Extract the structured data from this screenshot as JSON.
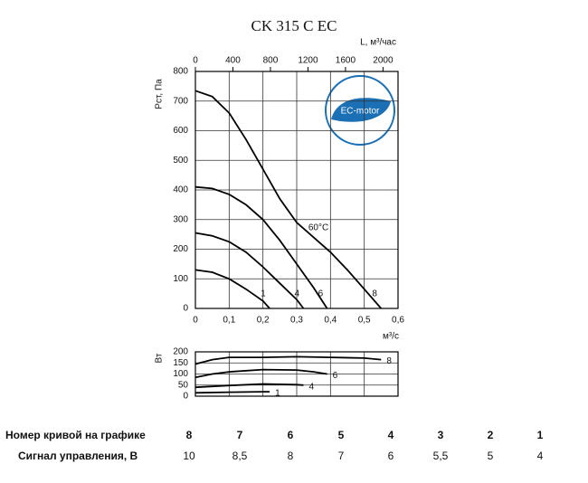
{
  "chart_data": [
    {
      "type": "line",
      "title": "CK 315 C EC",
      "x_label": "м³/с",
      "x2_label": "L, м³/час",
      "y_label": "Pст, Па",
      "annotation": "60°C",
      "badge": "EC-motor",
      "grid": true,
      "xlim": [
        0,
        0.6
      ],
      "xticks": [
        0,
        {
          "value": 0.1,
          "label": "0,1"
        },
        {
          "value": 0.2,
          "label": "0,2"
        },
        {
          "value": 0.3,
          "label": "0,3"
        },
        {
          "value": 0.4,
          "label": "0,4"
        },
        {
          "value": 0.5,
          "label": "0,5"
        },
        {
          "value": 0.6,
          "label": "0,6"
        }
      ],
      "x2lim": [
        0,
        2160
      ],
      "x2ticks": [
        0,
        400,
        800,
        1200,
        1600,
        2000
      ],
      "ylim": [
        0,
        800
      ],
      "yticks": [
        0,
        100,
        200,
        300,
        400,
        500,
        600,
        700,
        800
      ],
      "series": [
        {
          "name": "8",
          "color": "#000000",
          "x": [
            0,
            0.05,
            0.1,
            0.15,
            0.2,
            0.25,
            0.3,
            0.35,
            0.4,
            0.45,
            0.5,
            0.55
          ],
          "values": [
            735,
            715,
            660,
            570,
            470,
            370,
            290,
            240,
            190,
            130,
            65,
            0
          ]
        },
        {
          "name": "6",
          "color": "#000000",
          "x": [
            0,
            0.05,
            0.1,
            0.15,
            0.2,
            0.25,
            0.3,
            0.35,
            0.39
          ],
          "values": [
            410,
            405,
            385,
            350,
            300,
            230,
            150,
            70,
            0
          ]
        },
        {
          "name": "4",
          "color": "#000000",
          "x": [
            0,
            0.05,
            0.1,
            0.15,
            0.2,
            0.25,
            0.3,
            0.32
          ],
          "values": [
            255,
            245,
            225,
            190,
            140,
            85,
            30,
            0
          ]
        },
        {
          "name": "1",
          "color": "#000000",
          "x": [
            0,
            0.05,
            0.1,
            0.15,
            0.2,
            0.22
          ],
          "values": [
            130,
            122,
            100,
            65,
            25,
            0
          ]
        }
      ]
    },
    {
      "type": "line",
      "y_label": "Вт",
      "grid": true,
      "xlim": [
        0,
        0.6
      ],
      "ylim": [
        0,
        200
      ],
      "yticks": [
        0,
        50,
        100,
        150,
        200
      ],
      "series": [
        {
          "name": "8",
          "color": "#000000",
          "x": [
            0,
            0.05,
            0.1,
            0.2,
            0.3,
            0.4,
            0.5,
            0.55
          ],
          "values": [
            145,
            165,
            175,
            175,
            178,
            175,
            172,
            165
          ]
        },
        {
          "name": "6",
          "color": "#000000",
          "x": [
            0,
            0.05,
            0.1,
            0.2,
            0.3,
            0.35,
            0.39
          ],
          "values": [
            85,
            100,
            110,
            120,
            118,
            110,
            100
          ]
        },
        {
          "name": "4",
          "color": "#000000",
          "x": [
            0,
            0.1,
            0.2,
            0.3,
            0.32
          ],
          "values": [
            40,
            48,
            55,
            52,
            50
          ]
        },
        {
          "name": "1",
          "color": "#000000",
          "x": [
            0,
            0.1,
            0.2,
            0.22
          ],
          "values": [
            15,
            18,
            20,
            20
          ]
        }
      ]
    }
  ],
  "table": {
    "rows": [
      [
        "Номер кривой на графике",
        "8",
        "7",
        "6",
        "5",
        "4",
        "3",
        "2",
        "1"
      ],
      [
        "Сигнал управления, В",
        "10",
        "8,5",
        "8",
        "7",
        "6",
        "5,5",
        "5",
        "4"
      ]
    ]
  }
}
